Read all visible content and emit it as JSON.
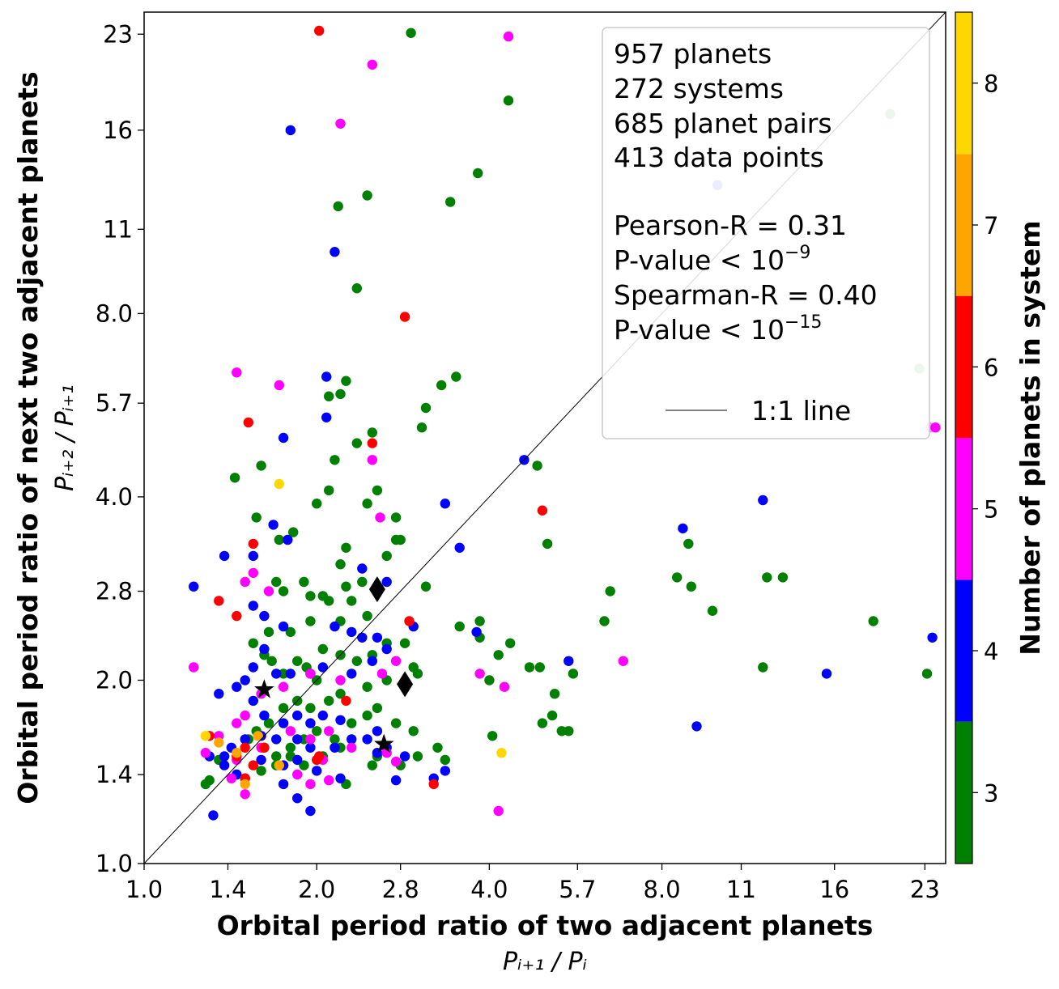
{
  "chart_data": {
    "type": "scatter",
    "scale": "log",
    "xlim": [
      1.0,
      25.0
    ],
    "ylim": [
      1.0,
      25.0
    ],
    "xticks": [
      "1.0",
      "1.4",
      "2.0",
      "2.8",
      "4.0",
      "5.7",
      "8.0",
      "11",
      "16",
      "23"
    ],
    "xtick_values": [
      1.0,
      1.4,
      2.0,
      2.8,
      4.0,
      5.7,
      8.0,
      11,
      16,
      23
    ],
    "yticks": [
      "1.0",
      "1.4",
      "2.0",
      "2.8",
      "4.0",
      "5.7",
      "8.0",
      "11",
      "16",
      "23"
    ],
    "ytick_values": [
      1.0,
      1.4,
      2.0,
      2.8,
      4.0,
      5.7,
      8.0,
      11,
      16,
      23
    ],
    "xlabel": "Orbital period ratio of two adjacent planets",
    "xlabel_sub": "Pᵢ₊₁ / Pᵢ",
    "ylabel": "Orbital period ratio of next two adjacent planets",
    "ylabel_sub": "Pᵢ₊₂ / Pᵢ₊₁",
    "stats": {
      "planets": "957 planets",
      "systems": "272 systems",
      "pairs": "685 planet pairs",
      "points": "413 data points",
      "pearson": "Pearson-R = 0.31",
      "pearson_p_base": "P-value < 10",
      "pearson_p_exp": "−9",
      "spearman": "Spearman-R = 0.40",
      "spearman_p_base": "P-value < 10",
      "spearman_p_exp": "−15"
    },
    "legend": {
      "line_label": "1:1 line"
    },
    "colorbar": {
      "label": "Number of planets in system",
      "ticks": [
        "3",
        "4",
        "5",
        "6",
        "7",
        "8"
      ],
      "levels": [
        3,
        4,
        5,
        6,
        7,
        8
      ],
      "colors": [
        "#008000",
        "#0000ff",
        "#ff00ff",
        "#ff0000",
        "#ffa500",
        "#ffd700"
      ]
    },
    "colors": {
      "3": "#008000",
      "4": "#0000ff",
      "5": "#ff00ff",
      "6": "#ff0000",
      "7": "#ffa500",
      "8": "#ffd700"
    },
    "special_markers": [
      {
        "shape": "diamond",
        "x": 2.55,
        "y": 2.82
      },
      {
        "shape": "diamond",
        "x": 2.85,
        "y": 1.97
      },
      {
        "shape": "star",
        "x": 1.62,
        "y": 1.93
      },
      {
        "shape": "star",
        "x": 2.62,
        "y": 1.57
      }
    ],
    "series": [
      {
        "n": 3,
        "points": [
          [
            2.92,
            23.1
          ],
          [
            4.32,
            17.9
          ],
          [
            3.82,
            13.6
          ],
          [
            3.42,
            12.2
          ],
          [
            2.18,
            12.0
          ],
          [
            2.45,
            12.5
          ],
          [
            2.35,
            8.8
          ],
          [
            2.25,
            6.2
          ],
          [
            2.1,
            5.85
          ],
          [
            2.2,
            5.9
          ],
          [
            2.5,
            5.1
          ],
          [
            2.35,
            4.9
          ],
          [
            2.15,
            4.6
          ],
          [
            2.1,
            4.1
          ],
          [
            3.1,
            5.6
          ],
          [
            3.3,
            6.1
          ],
          [
            3.5,
            6.3
          ],
          [
            3.05,
            5.2
          ],
          [
            2.55,
            4.1
          ],
          [
            2.45,
            3.9
          ],
          [
            2.0,
            3.9
          ],
          [
            1.72,
            3.4
          ],
          [
            1.82,
            3.5
          ],
          [
            1.57,
            3.7
          ],
          [
            1.44,
            4.3
          ],
          [
            1.6,
            4.5
          ],
          [
            2.75,
            3.7
          ],
          [
            2.75,
            3.4
          ],
          [
            2.8,
            3.4
          ],
          [
            2.25,
            3.3
          ],
          [
            2.2,
            3.1
          ],
          [
            2.65,
            3.2
          ],
          [
            3.1,
            2.85
          ],
          [
            2.4,
            2.9
          ],
          [
            2.25,
            2.85
          ],
          [
            2.05,
            2.75
          ],
          [
            1.7,
            2.9
          ],
          [
            1.75,
            2.8
          ],
          [
            1.9,
            2.9
          ],
          [
            1.95,
            2.75
          ],
          [
            2.1,
            2.7
          ],
          [
            2.3,
            2.7
          ],
          [
            2.45,
            2.55
          ],
          [
            2.2,
            2.5
          ],
          [
            1.95,
            2.5
          ],
          [
            1.8,
            2.4
          ],
          [
            1.65,
            2.4
          ],
          [
            1.55,
            2.3
          ],
          [
            1.62,
            2.2
          ],
          [
            1.67,
            2.15
          ],
          [
            1.75,
            2.05
          ],
          [
            1.85,
            2.15
          ],
          [
            1.92,
            2.1
          ],
          [
            2.0,
            2.0
          ],
          [
            2.05,
            2.25
          ],
          [
            2.2,
            2.2
          ],
          [
            2.35,
            2.15
          ],
          [
            2.5,
            2.2
          ],
          [
            2.65,
            2.3
          ],
          [
            2.85,
            2.3
          ],
          [
            2.95,
            2.1
          ],
          [
            3.0,
            2.05
          ],
          [
            2.65,
            2.0
          ],
          [
            2.45,
            1.95
          ],
          [
            2.2,
            1.9
          ],
          [
            2.1,
            1.85
          ],
          [
            1.95,
            1.8
          ],
          [
            1.85,
            1.85
          ],
          [
            1.75,
            1.8
          ],
          [
            1.65,
            1.7
          ],
          [
            1.57,
            1.65
          ],
          [
            1.52,
            1.6
          ],
          [
            1.62,
            1.55
          ],
          [
            1.7,
            1.5
          ],
          [
            1.8,
            1.55
          ],
          [
            1.9,
            1.6
          ],
          [
            2.0,
            1.65
          ],
          [
            2.15,
            1.6
          ],
          [
            2.3,
            1.7
          ],
          [
            2.45,
            1.75
          ],
          [
            2.55,
            1.8
          ],
          [
            2.75,
            1.7
          ],
          [
            2.95,
            1.65
          ],
          [
            3.25,
            1.55
          ],
          [
            3.35,
            1.48
          ],
          [
            3.0,
            1.5
          ],
          [
            2.8,
            1.45
          ],
          [
            2.55,
            1.5
          ],
          [
            2.2,
            1.55
          ],
          [
            2.05,
            1.5
          ],
          [
            1.9,
            1.45
          ],
          [
            1.8,
            1.5
          ],
          [
            1.7,
            1.45
          ],
          [
            1.6,
            1.42
          ],
          [
            1.5,
            1.38
          ],
          [
            1.45,
            1.4
          ],
          [
            1.35,
            1.48
          ],
          [
            1.28,
            1.35
          ],
          [
            1.3,
            1.37
          ],
          [
            2.25,
            1.35
          ],
          [
            2.5,
            1.45
          ],
          [
            3.55,
            2.45
          ],
          [
            3.85,
            2.35
          ],
          [
            4.35,
            2.3
          ],
          [
            4.15,
            2.2
          ],
          [
            4.7,
            2.1
          ],
          [
            4.9,
            2.1
          ],
          [
            5.6,
            2.05
          ],
          [
            5.2,
            1.9
          ],
          [
            4.95,
            1.7
          ],
          [
            5.5,
            1.65
          ],
          [
            5.15,
            1.75
          ],
          [
            5.35,
            1.65
          ],
          [
            4.0,
            2.0
          ],
          [
            4.05,
            1.62
          ],
          [
            6.35,
            2.5
          ],
          [
            6.5,
            2.8
          ],
          [
            9.0,
            2.85
          ],
          [
            8.9,
            3.35
          ],
          [
            8.5,
            2.95
          ],
          [
            9.8,
            2.6
          ],
          [
            12.2,
            2.95
          ],
          [
            13.0,
            2.95
          ],
          [
            18.7,
            2.5
          ],
          [
            23.2,
            2.05
          ],
          [
            12.0,
            2.1
          ],
          [
            4.85,
            4.5
          ],
          [
            5.05,
            3.35
          ],
          [
            3.85,
            2.5
          ]
        ]
      },
      {
        "n": 4,
        "points": [
          [
            1.8,
            16.0
          ],
          [
            2.15,
            10.1
          ],
          [
            2.08,
            6.3
          ],
          [
            2.08,
            5.4
          ],
          [
            1.75,
            5.0
          ],
          [
            3.35,
            3.9
          ],
          [
            3.55,
            3.3
          ],
          [
            2.4,
            3.05
          ],
          [
            2.65,
            2.9
          ],
          [
            1.68,
            3.6
          ],
          [
            1.78,
            3.4
          ],
          [
            1.55,
            3.2
          ],
          [
            1.38,
            3.2
          ],
          [
            1.22,
            2.85
          ],
          [
            1.55,
            2.65
          ],
          [
            1.62,
            2.55
          ],
          [
            1.75,
            2.45
          ],
          [
            2.15,
            2.45
          ],
          [
            2.3,
            2.4
          ],
          [
            2.4,
            2.35
          ],
          [
            2.55,
            2.35
          ],
          [
            2.65,
            2.25
          ],
          [
            2.5,
            2.15
          ],
          [
            2.3,
            2.05
          ],
          [
            2.05,
            2.1
          ],
          [
            1.95,
            2.05
          ],
          [
            1.8,
            2.05
          ],
          [
            1.7,
            2.05
          ],
          [
            1.62,
            2.25
          ],
          [
            1.55,
            2.1
          ],
          [
            1.5,
            2.0
          ],
          [
            1.45,
            1.95
          ],
          [
            1.35,
            1.9
          ],
          [
            1.55,
            1.85
          ],
          [
            1.62,
            1.75
          ],
          [
            1.75,
            1.7
          ],
          [
            1.85,
            1.75
          ],
          [
            1.95,
            1.7
          ],
          [
            2.05,
            1.75
          ],
          [
            2.2,
            1.72
          ],
          [
            2.3,
            1.6
          ],
          [
            2.45,
            1.6
          ],
          [
            2.55,
            1.65
          ],
          [
            2.65,
            1.55
          ],
          [
            2.15,
            1.55
          ],
          [
            1.95,
            1.55
          ],
          [
            1.85,
            1.6
          ],
          [
            1.7,
            1.6
          ],
          [
            1.6,
            1.62
          ],
          [
            1.5,
            1.6
          ],
          [
            1.42,
            1.55
          ],
          [
            1.38,
            1.5
          ],
          [
            1.3,
            1.5
          ],
          [
            1.38,
            1.45
          ],
          [
            1.45,
            1.4
          ],
          [
            1.6,
            1.48
          ],
          [
            1.75,
            1.45
          ],
          [
            1.85,
            1.48
          ],
          [
            2.0,
            1.42
          ],
          [
            2.2,
            1.38
          ],
          [
            2.55,
            1.52
          ],
          [
            1.75,
            1.35
          ],
          [
            1.85,
            1.28
          ],
          [
            1.95,
            1.22
          ],
          [
            1.32,
            1.2
          ],
          [
            2.85,
            1.5
          ],
          [
            2.75,
            1.37
          ],
          [
            3.2,
            1.38
          ],
          [
            3.35,
            1.42
          ],
          [
            3.8,
            2.4
          ],
          [
            4.6,
            4.6
          ],
          [
            8.7,
            3.55
          ],
          [
            12.0,
            3.95
          ],
          [
            15.5,
            2.05
          ],
          [
            23.7,
            2.35
          ],
          [
            5.5,
            2.15
          ],
          [
            9.2,
            1.68
          ],
          [
            2.95,
            2.45
          ]
        ]
      },
      {
        "n": 5,
        "points": [
          [
            4.32,
            22.8
          ],
          [
            2.5,
            20.5
          ],
          [
            2.2,
            16.4
          ],
          [
            1.45,
            6.4
          ],
          [
            1.72,
            6.1
          ],
          [
            2.5,
            4.6
          ],
          [
            2.58,
            3.7
          ],
          [
            1.55,
            3.0
          ],
          [
            1.5,
            2.9
          ],
          [
            1.65,
            2.8
          ],
          [
            2.75,
            2.15
          ],
          [
            2.6,
            2.05
          ],
          [
            2.2,
            2.0
          ],
          [
            1.95,
            2.05
          ],
          [
            1.75,
            1.95
          ],
          [
            1.6,
            1.9
          ],
          [
            1.5,
            1.75
          ],
          [
            1.45,
            1.7
          ],
          [
            1.6,
            1.55
          ],
          [
            1.8,
            1.65
          ],
          [
            1.95,
            1.6
          ],
          [
            2.1,
            1.65
          ],
          [
            2.3,
            1.55
          ],
          [
            2.65,
            1.52
          ],
          [
            2.75,
            1.47
          ],
          [
            2.05,
            1.48
          ],
          [
            1.85,
            1.4
          ],
          [
            1.95,
            1.35
          ],
          [
            2.1,
            1.37
          ],
          [
            1.45,
            1.48
          ],
          [
            1.42,
            1.38
          ],
          [
            1.5,
            1.3
          ],
          [
            1.28,
            1.52
          ],
          [
            1.22,
            2.1
          ],
          [
            1.35,
            1.62
          ],
          [
            3.85,
            2.05
          ],
          [
            4.25,
            1.95
          ],
          [
            4.15,
            1.22
          ],
          [
            6.85,
            2.15
          ],
          [
            24.0,
            5.2
          ]
        ]
      },
      {
        "n": 6,
        "points": [
          [
            2.02,
            23.3
          ],
          [
            2.85,
            7.9
          ],
          [
            1.52,
            5.3
          ],
          [
            2.5,
            4.9
          ],
          [
            1.55,
            3.35
          ],
          [
            1.35,
            2.7
          ],
          [
            1.45,
            2.55
          ],
          [
            2.9,
            2.5
          ],
          [
            2.25,
            1.85
          ],
          [
            1.3,
            1.62
          ],
          [
            1.5,
            1.55
          ],
          [
            1.45,
            1.5
          ],
          [
            1.55,
            1.45
          ],
          [
            1.62,
            1.55
          ],
          [
            2.02,
            1.5
          ],
          [
            1.5,
            1.38
          ],
          [
            3.2,
            1.35
          ],
          [
            4.95,
            3.8
          ],
          [
            2.0,
            1.48
          ]
        ]
      },
      {
        "n": 7,
        "points": [
          [
            1.35,
            1.58
          ],
          [
            1.45,
            1.52
          ],
          [
            1.58,
            1.62
          ],
          [
            1.72,
            1.45
          ],
          [
            1.5,
            1.35
          ]
        ]
      },
      {
        "n": 8,
        "points": [
          [
            1.28,
            1.62
          ],
          [
            1.72,
            4.2
          ],
          [
            4.2,
            1.52
          ]
        ]
      }
    ],
    "faded_points": [
      {
        "n": 3,
        "x": 20.0,
        "y": 17.0
      },
      {
        "n": 3,
        "x": 22.5,
        "y": 6.5
      },
      {
        "n": 4,
        "x": 10.0,
        "y": 13.0
      },
      {
        "n": 5,
        "x": 23.5,
        "y": 5.2
      }
    ]
  }
}
